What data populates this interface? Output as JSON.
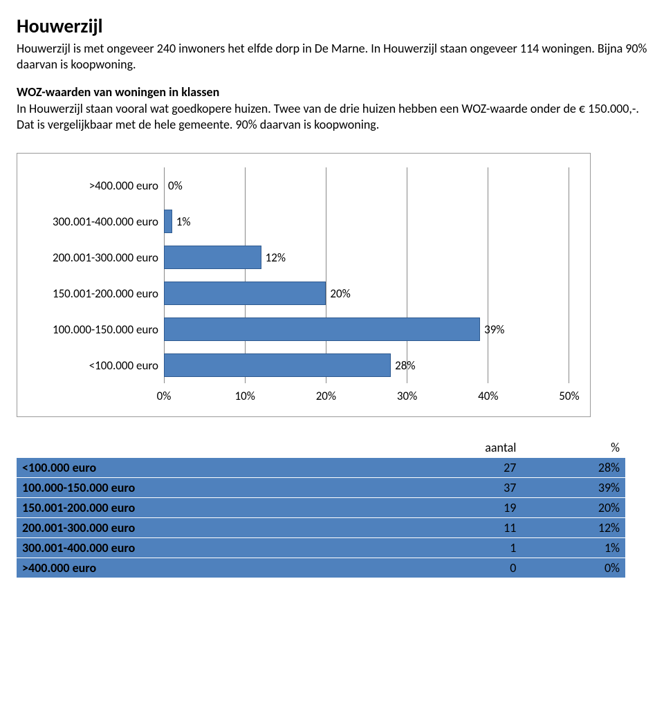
{
  "page": {
    "title": "Houwerzijl",
    "intro": "Houwerzijl is met ongeveer 240 inwoners het elfde dorp in De Marne. In Houwerzijl staan ongeveer 114 woningen. Bijna 90% daarvan is koopwoning.",
    "section_title": "WOZ-waarden van woningen in klassen",
    "section_body": "In Houwerzijl staan vooral wat goedkopere huizen. Twee van de drie huizen hebben een WOZ-waarde onder de € 150.000,-. Dat is vergelijkbaar met de hele gemeente. 90% daarvan is koopwoning."
  },
  "chart": {
    "type": "bar",
    "categories": [
      ">400.000 euro",
      "300.001-400.000 euro",
      "200.001-300.000 euro",
      "150.001-200.000 euro",
      "100.000-150.000 euro",
      "<100.000 euro"
    ],
    "values": [
      0,
      1,
      12,
      20,
      39,
      28
    ],
    "value_labels": [
      "0%",
      "1%",
      "12%",
      "20%",
      "39%",
      "28%"
    ],
    "bar_color": "#4f81bd",
    "bar_border": "#2e5a90",
    "grid_color": "#888888",
    "x_ticks": [
      "0%",
      "10%",
      "20%",
      "30%",
      "40%",
      "50%"
    ],
    "x_max": 50,
    "label_fontsize": 17
  },
  "table": {
    "header": [
      "",
      "aantal",
      "%"
    ],
    "rows": [
      {
        "cat": "<100.000 euro",
        "n": "27",
        "p": "28%"
      },
      {
        "cat": "100.000-150.000 euro",
        "n": "37",
        "p": "39%"
      },
      {
        "cat": "150.001-200.000 euro",
        "n": "19",
        "p": "20%"
      },
      {
        "cat": "200.001-300.000 euro",
        "n": "11",
        "p": "12%"
      },
      {
        "cat": "300.001-400.000 euro",
        "n": "1",
        "p": "1%"
      },
      {
        "cat": ">400.000 euro",
        "n": "0",
        "p": "0%"
      }
    ],
    "row_bg": "#4f81bd"
  }
}
